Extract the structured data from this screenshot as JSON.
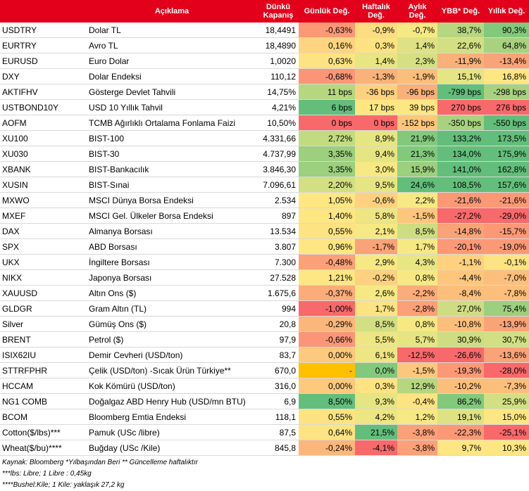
{
  "header": {
    "code": "",
    "description": "Açıklama",
    "close": "Dünkü Kapanış",
    "daily": "Günlük Değ.",
    "weekly": "Haftalık Değ.",
    "monthly": "Aylık Değ.",
    "ytd": "YBB* Değ.",
    "yearly": "Yıllık Değ."
  },
  "rows": [
    {
      "code": "USDTRY",
      "desc": "Dolar TL",
      "close": "18,4491",
      "daily": "-0,63%",
      "weekly": "-0,9%",
      "monthly": "-0,7%",
      "ytd": "38,7%",
      "yearly": "90,3%",
      "colors": [
        "#fb9977",
        "#fcdd81",
        "#f6e983",
        "#b6d77f",
        "#82c97c"
      ]
    },
    {
      "code": "EURTRY",
      "desc": "Avro TL",
      "close": "18,4890",
      "daily": "0,16%",
      "weekly": "0,3%",
      "monthly": "1,4%",
      "ytd": "22,6%",
      "yearly": "64,8%",
      "colors": [
        "#fed480",
        "#fde382",
        "#dfe283",
        "#d2df82",
        "#a8d27f"
      ]
    },
    {
      "code": "EURUSD",
      "desc": "Euro Dolar",
      "close": "1,0020",
      "daily": "0,63%",
      "weekly": "1,4%",
      "monthly": "2,3%",
      "ytd": "-11,9%",
      "yearly": "-13,4%",
      "colors": [
        "#fde382",
        "#e8e583",
        "#d5e082",
        "#f9b079",
        "#f9a378"
      ]
    },
    {
      "code": "DXY",
      "desc": "Dolar Endeksi",
      "close": "110,12",
      "daily": "-0,68%",
      "weekly": "-1,3%",
      "monthly": "-1,9%",
      "ytd": "15,1%",
      "yearly": "16,8%",
      "colors": [
        "#fa9677",
        "#f9b37a",
        "#fcbf7b",
        "#e6e583",
        "#fee683"
      ]
    },
    {
      "code": "AKTIFHV",
      "desc": "Gösterge Devlet Tahvili",
      "close": "14,75%",
      "daily": "11 bps",
      "weekly": "-36 bps",
      "monthly": "-96 bps",
      "ytd": "-799 bps",
      "yearly": "-298 bps",
      "colors": [
        "#b6d77f",
        "#fdd17f",
        "#f9b079",
        "#63be7b",
        "#a8d27f"
      ]
    },
    {
      "code": "USTBOND10Y",
      "desc": "USD 10 Yıllık Tahvil",
      "close": "4,21%",
      "daily": "6 bps",
      "weekly": "17 bps",
      "monthly": "39 bps",
      "ytd": "270 bps",
      "yearly": "276 bps",
      "colors": [
        "#63be7b",
        "#fee683",
        "#fee683",
        "#f8696b",
        "#f8696b"
      ]
    },
    {
      "code": "AOFM",
      "desc": "TCMB Ağırlıklı Ortalama Fonlama Faizi",
      "close": "10,50%",
      "daily": "0 bps",
      "weekly": "0 bps",
      "monthly": "-152 bps",
      "ytd": "-350 bps",
      "yearly": "-550 bps",
      "colors": [
        "#f8696b",
        "#f8696b",
        "#fcc77d",
        "#a8d27f",
        "#63be7b"
      ]
    },
    {
      "code": "XU100",
      "desc": "BIST-100",
      "close": "4.331,66",
      "daily": "2,72%",
      "weekly": "8,9%",
      "monthly": "21,9%",
      "ytd": "133,2%",
      "yearly": "173,5%",
      "colors": [
        "#c3db80",
        "#e6e583",
        "#82c97c",
        "#63be7b",
        "#63be7b"
      ]
    },
    {
      "code": "XU030",
      "desc": "BIST-30",
      "close": "4.737,99",
      "daily": "3,35%",
      "weekly": "9,4%",
      "monthly": "21,3%",
      "ytd": "134,0%",
      "yearly": "175,9%",
      "colors": [
        "#9ccf7e",
        "#e6e583",
        "#82c97c",
        "#63be7b",
        "#63be7b"
      ]
    },
    {
      "code": "XBANK",
      "desc": "BIST-Bankacılık",
      "close": "3.846,30",
      "daily": "3,35%",
      "weekly": "3,0%",
      "monthly": "15,9%",
      "ytd": "141,0%",
      "yearly": "162,8%",
      "colors": [
        "#9ccf7e",
        "#f6e983",
        "#9ccf7e",
        "#63be7b",
        "#63be7b"
      ]
    },
    {
      "code": "XUSIN",
      "desc": "BIST-Sınai",
      "close": "7.096,61",
      "daily": "2,20%",
      "weekly": "9,5%",
      "monthly": "24,6%",
      "ytd": "108,5%",
      "yearly": "157,6%",
      "colors": [
        "#d2df82",
        "#e6e583",
        "#63be7b",
        "#63be7b",
        "#63be7b"
      ]
    },
    {
      "code": "MXWO",
      "desc": "MSCI Dünya Borsa Endeksi",
      "close": "2.534",
      "daily": "1,05%",
      "weekly": "-0,6%",
      "monthly": "2,2%",
      "ytd": "-21,6%",
      "yearly": "-21,6%",
      "colors": [
        "#fee683",
        "#fdd17f",
        "#f6e983",
        "#fb9977",
        "#fb9977"
      ]
    },
    {
      "code": "MXEF",
      "desc": "MSCI Gel. Ülkeler Borsa Endeksi",
      "close": "897",
      "daily": "1,40%",
      "weekly": "5,8%",
      "monthly": "-1,5%",
      "ytd": "-27,2%",
      "yearly": "-29,0%",
      "colors": [
        "#fee683",
        "#eee583",
        "#fcc77d",
        "#f8696b",
        "#f8696b"
      ]
    },
    {
      "code": "DAX",
      "desc": "Almanya Borsası",
      "close": "13.534",
      "daily": "0,55%",
      "weekly": "2,1%",
      "monthly": "8,5%",
      "ytd": "-14,8%",
      "yearly": "-15,7%",
      "colors": [
        "#fde382",
        "#f6e983",
        "#cedd81",
        "#f9a378",
        "#fb9977"
      ]
    },
    {
      "code": "SPX",
      "desc": "ABD Borsası",
      "close": "3.807",
      "daily": "0,96%",
      "weekly": "-1,7%",
      "monthly": "1,7%",
      "ytd": "-20,1%",
      "yearly": "-19,0%",
      "colors": [
        "#fee683",
        "#f9a378",
        "#f6e983",
        "#fb9977",
        "#fb9977"
      ]
    },
    {
      "code": "UKX",
      "desc": "İngiltere Borsası",
      "close": "7.300",
      "daily": "-0,48%",
      "weekly": "2,9%",
      "monthly": "4,3%",
      "ytd": "-1,1%",
      "yearly": "-0,1%",
      "colors": [
        "#fba078",
        "#f6e983",
        "#e8e583",
        "#fdd17f",
        "#fde382"
      ]
    },
    {
      "code": "NIKX",
      "desc": "Japonya Borsası",
      "close": "27.528",
      "daily": "1,21%",
      "weekly": "-0,2%",
      "monthly": "0,8%",
      "ytd": "-4,4%",
      "yearly": "-7,0%",
      "colors": [
        "#fee683",
        "#fdd17f",
        "#f6e983",
        "#fcc77d",
        "#fcbf7b"
      ]
    },
    {
      "code": "XAUUSD",
      "desc": "Altın Ons ($)",
      "close": "1.675,6",
      "daily": "-0,37%",
      "weekly": "2,6%",
      "monthly": "-2,2%",
      "ytd": "-8,4%",
      "yearly": "-7,8%",
      "colors": [
        "#fbac7a",
        "#f6e983",
        "#fbac7a",
        "#fcbf7b",
        "#fcbf7b"
      ]
    },
    {
      "code": "GLDGR",
      "desc": "Gram Altın (TL)",
      "close": "994",
      "daily": "-1,00%",
      "weekly": "1,7%",
      "monthly": "-2,8%",
      "ytd": "27,0%",
      "yearly": "75,4%",
      "colors": [
        "#f8696b",
        "#fde382",
        "#fba078",
        "#cedd81",
        "#9ccf7e"
      ]
    },
    {
      "code": "Silver",
      "desc": "Gümüş Ons ($)",
      "close": "20,8",
      "daily": "-0,29%",
      "weekly": "8,5%",
      "monthly": "0,8%",
      "ytd": "-10,8%",
      "yearly": "-13,9%",
      "colors": [
        "#fbb77b",
        "#d2df82",
        "#f6e983",
        "#fcbf7b",
        "#f9a378"
      ]
    },
    {
      "code": "BRENT",
      "desc": "Petrol ($)",
      "close": "97,9",
      "daily": "-0,66%",
      "weekly": "5,5%",
      "monthly": "5,7%",
      "ytd": "30,9%",
      "yearly": "30,7%",
      "colors": [
        "#fa9677",
        "#eee583",
        "#e6e583",
        "#cedd81",
        "#d2df82"
      ]
    },
    {
      "code": "ISIX62IU",
      "desc": "Demir Cevheri (USD/ton)",
      "close": "83,7",
      "daily": "0,00%",
      "weekly": "6,1%",
      "monthly": "-12,5%",
      "ytd": "-26,6%",
      "yearly": "-13,6%",
      "colors": [
        "#fdc97d",
        "#eee583",
        "#f8696b",
        "#f8696b",
        "#f9a378"
      ]
    },
    {
      "code": "STTRFPHR",
      "desc": "Çelik (USD/ton) -Sıcak Ürün Türkiye**",
      "close": "670,0",
      "daily": "-",
      "weekly": "0,0%",
      "monthly": "-1,5%",
      "ytd": "-19,3%",
      "yearly": "-28,0%",
      "colors": [
        "#ffc000",
        "#82c97c",
        "#fcc77d",
        "#fb9977",
        "#f8696b"
      ]
    },
    {
      "code": "HCCAM",
      "desc": "Kok Kömürü (USD/ton)",
      "close": "316,0",
      "daily": "0,00%",
      "weekly": "0,3%",
      "monthly": "12,9%",
      "ytd": "-10,2%",
      "yearly": "-7,3%",
      "colors": [
        "#fdc97d",
        "#fde382",
        "#b6d77f",
        "#fcbf7b",
        "#fcbf7b"
      ]
    },
    {
      "code": "NG1 COMB",
      "desc": "Doğalgaz ABD Henry Hub (USD/mn BTU)",
      "close": "6,9",
      "daily": "8,50%",
      "weekly": "9,3%",
      "monthly": "-0,4%",
      "ytd": "86,2%",
      "yearly": "25,9%",
      "colors": [
        "#63be7b",
        "#e6e583",
        "#fde382",
        "#82c97c",
        "#d2df82"
      ]
    },
    {
      "code": "BCOM",
      "desc": "Bloomberg Emtia Endeksi",
      "close": "118,1",
      "daily": "0,55%",
      "weekly": "4,2%",
      "monthly": "1,2%",
      "ytd": "19,1%",
      "yearly": "15,0%",
      "colors": [
        "#fde382",
        "#eee583",
        "#f6e983",
        "#dfe283",
        "#fee683"
      ]
    },
    {
      "code": "Cotton($/lbs)***",
      "desc": "Pamuk (USc /libre)",
      "close": "87,5",
      "daily": "0,64%",
      "weekly": "21,5%",
      "monthly": "-3,8%",
      "ytd": "-22,3%",
      "yearly": "-25,1%",
      "colors": [
        "#fde382",
        "#63be7b",
        "#fba078",
        "#fb9977",
        "#f8696b"
      ]
    },
    {
      "code": "Wheat($/bu)****",
      "desc": "Buğday (USc /Kile)",
      "close": "845,8",
      "daily": "-0,24%",
      "weekly": "-4,1%",
      "monthly": "-3,8%",
      "ytd": "9,7%",
      "yearly": "10,3%",
      "colors": [
        "#fbb77b",
        "#f8696b",
        "#fba078",
        "#fee683",
        "#fee683"
      ]
    }
  ],
  "notes": [
    "Kaynak: Bloomberg *Yılbaşından Beri  ** Güncelleme haftalıktır",
    "***lbs: Libre; 1 Libre : 0,45kg",
    "****Bushel:Kile; 1 Kile: yaklaşık 27,2 kg"
  ]
}
